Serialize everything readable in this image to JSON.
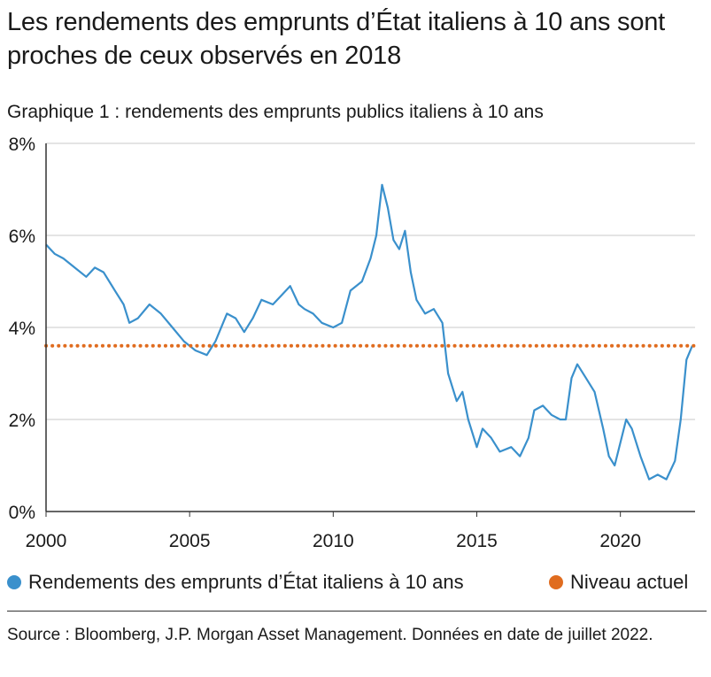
{
  "title": "Les rendements des emprunts d’État italiens à 10 ans sont proches de ceux observés en 2018",
  "subtitle": "Graphique 1 : rendements des emprunts publics italiens à 10 ans",
  "legend": {
    "series_label": "Rendements des emprunts d’État italiens à 10 ans",
    "reference_label": "Niveau actuel"
  },
  "source": "Source : Bloomberg, J.P. Morgan Asset Management. Données en date de juillet 2022.",
  "colors": {
    "series": "#3a90cc",
    "reference": "#e06c1f",
    "grid": "#c8c8c8",
    "axis": "#333333"
  },
  "chart_data": {
    "type": "line",
    "xlim": [
      2000,
      2022.6
    ],
    "ylim": [
      0,
      8
    ],
    "xticks": [
      2000,
      2005,
      2010,
      2015,
      2020
    ],
    "yticks": [
      0,
      2,
      4,
      6,
      8
    ],
    "ytick_labels": [
      "0%",
      "2%",
      "4%",
      "6%",
      "8%"
    ],
    "grid": true,
    "legend_position": "bottom",
    "reference_line": {
      "name": "Niveau actuel",
      "value": 3.6,
      "style": "dotted"
    },
    "series": [
      {
        "name": "Rendements des emprunts d’État italiens à 10 ans",
        "x": [
          2000.0,
          2000.3,
          2000.6,
          2001.0,
          2001.4,
          2001.7,
          2002.0,
          2002.4,
          2002.7,
          2002.9,
          2003.2,
          2003.6,
          2004.0,
          2004.4,
          2004.8,
          2005.2,
          2005.6,
          2005.9,
          2006.3,
          2006.6,
          2006.9,
          2007.2,
          2007.5,
          2007.9,
          2008.2,
          2008.5,
          2008.8,
          2009.0,
          2009.3,
          2009.6,
          2010.0,
          2010.3,
          2010.6,
          2011.0,
          2011.3,
          2011.5,
          2011.7,
          2011.9,
          2012.1,
          2012.3,
          2012.5,
          2012.7,
          2012.9,
          2013.2,
          2013.5,
          2013.8,
          2014.0,
          2014.3,
          2014.5,
          2014.7,
          2015.0,
          2015.2,
          2015.5,
          2015.8,
          2016.2,
          2016.5,
          2016.8,
          2017.0,
          2017.3,
          2017.6,
          2017.9,
          2018.1,
          2018.3,
          2018.5,
          2018.8,
          2019.1,
          2019.4,
          2019.6,
          2019.8,
          2020.0,
          2020.2,
          2020.4,
          2020.7,
          2021.0,
          2021.3,
          2021.6,
          2021.9,
          2022.1,
          2022.3,
          2022.5
        ],
        "values": [
          5.8,
          5.6,
          5.5,
          5.3,
          5.1,
          5.3,
          5.2,
          4.8,
          4.5,
          4.1,
          4.2,
          4.5,
          4.3,
          4.0,
          3.7,
          3.5,
          3.4,
          3.7,
          4.3,
          4.2,
          3.9,
          4.2,
          4.6,
          4.5,
          4.7,
          4.9,
          4.5,
          4.4,
          4.3,
          4.1,
          4.0,
          4.1,
          4.8,
          5.0,
          5.5,
          6.0,
          7.1,
          6.6,
          5.9,
          5.7,
          6.1,
          5.2,
          4.6,
          4.3,
          4.4,
          4.1,
          3.0,
          2.4,
          2.6,
          2.0,
          1.4,
          1.8,
          1.6,
          1.3,
          1.4,
          1.2,
          1.6,
          2.2,
          2.3,
          2.1,
          2.0,
          2.0,
          2.9,
          3.2,
          2.9,
          2.6,
          1.8,
          1.2,
          1.0,
          1.5,
          2.0,
          1.8,
          1.2,
          0.7,
          0.8,
          0.7,
          1.1,
          2.0,
          3.3,
          3.6
        ]
      }
    ]
  }
}
